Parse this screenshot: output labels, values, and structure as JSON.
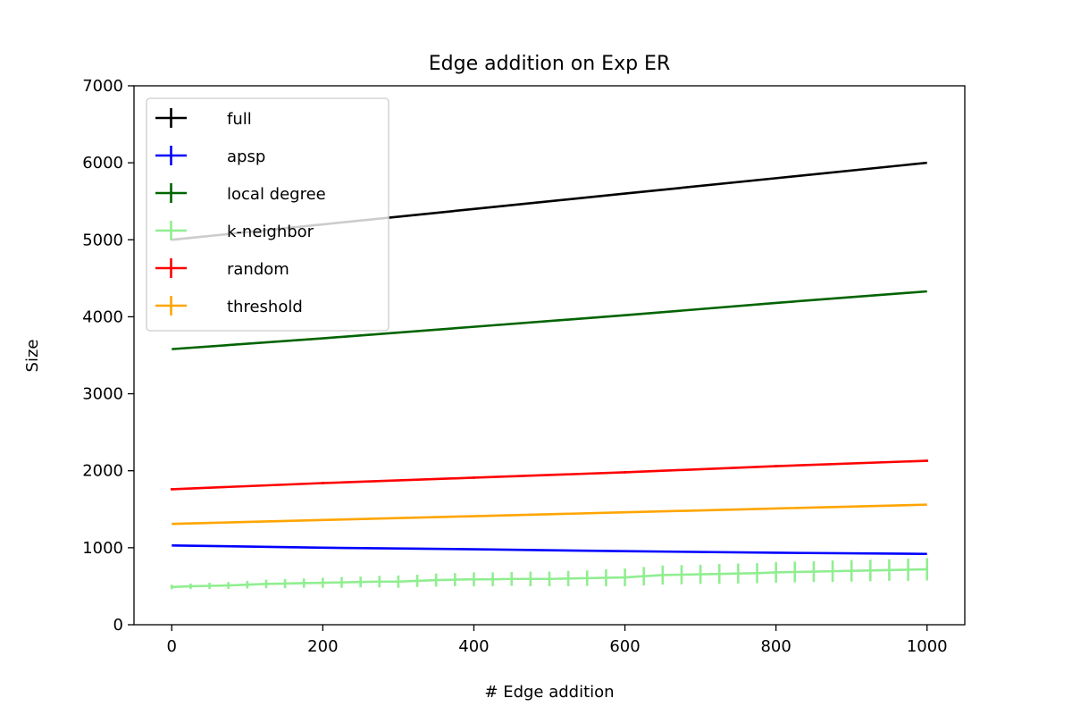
{
  "chart_data": {
    "type": "line",
    "title": "Edge addition on Exp ER",
    "xlabel": "# Edge addition",
    "ylabel": "Size",
    "xlim": [
      -50,
      1050
    ],
    "ylim": [
      0,
      7000
    ],
    "xticks": [
      0,
      200,
      400,
      600,
      800,
      1000
    ],
    "yticks": [
      0,
      1000,
      2000,
      3000,
      4000,
      5000,
      6000,
      7000
    ],
    "grid": false,
    "legend_position": "upper-left",
    "series": [
      {
        "name": "full",
        "color": "#000000",
        "x": [
          0,
          200,
          400,
          600,
          800,
          1000
        ],
        "y": [
          5000,
          5200,
          5400,
          5600,
          5800,
          6000
        ],
        "error": 0
      },
      {
        "name": "apsp",
        "color": "#0000ff",
        "x": [
          0,
          200,
          400,
          600,
          800,
          1000
        ],
        "y": [
          1030,
          1000,
          980,
          955,
          935,
          920
        ],
        "error": 0
      },
      {
        "name": "local degree",
        "color": "#006400",
        "x": [
          0,
          200,
          400,
          600,
          800,
          1000
        ],
        "y": [
          3580,
          3720,
          3870,
          4020,
          4180,
          4330
        ],
        "error": 0
      },
      {
        "name": "k-neighbor",
        "color": "#90ee90",
        "x": [
          0,
          25,
          50,
          75,
          100,
          125,
          150,
          175,
          200,
          225,
          250,
          275,
          300,
          325,
          350,
          375,
          400,
          425,
          450,
          475,
          500,
          525,
          550,
          575,
          600,
          625,
          650,
          675,
          700,
          725,
          750,
          775,
          800,
          825,
          850,
          875,
          900,
          925,
          950,
          975,
          1000
        ],
        "y": [
          490,
          500,
          505,
          510,
          520,
          530,
          535,
          540,
          545,
          550,
          555,
          560,
          560,
          570,
          580,
          585,
          590,
          590,
          595,
          595,
          595,
          600,
          605,
          610,
          615,
          630,
          645,
          650,
          655,
          660,
          665,
          670,
          680,
          685,
          690,
          695,
          700,
          705,
          710,
          715,
          720
        ],
        "error": [
          30,
          35,
          40,
          45,
          50,
          55,
          60,
          60,
          65,
          70,
          70,
          75,
          80,
          80,
          85,
          85,
          90,
          90,
          90,
          95,
          95,
          100,
          100,
          110,
          115,
          120,
          125,
          125,
          125,
          130,
          130,
          130,
          135,
          135,
          135,
          140,
          140,
          140,
          140,
          145,
          145
        ]
      },
      {
        "name": "random",
        "color": "#ff0000",
        "x": [
          0,
          200,
          400,
          600,
          800,
          1000
        ],
        "y": [
          1760,
          1840,
          1910,
          1980,
          2060,
          2130
        ],
        "error": 15
      },
      {
        "name": "threshold",
        "color": "#ffa500",
        "x": [
          0,
          200,
          400,
          600,
          800,
          1000
        ],
        "y": [
          1310,
          1360,
          1410,
          1460,
          1510,
          1560
        ],
        "error": 0
      }
    ]
  }
}
